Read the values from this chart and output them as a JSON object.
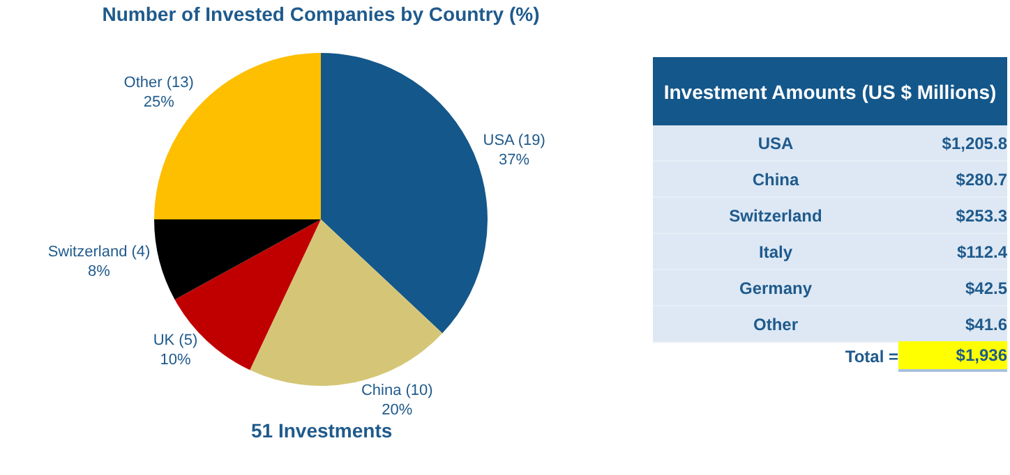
{
  "chart_data": [
    {
      "type": "pie",
      "title": "Number of Invested Companies by Country (%)",
      "categories": [
        "USA (19)",
        "China (10)",
        "UK (5)",
        "Switzerland (4)",
        "Other (13)"
      ],
      "values": [
        37,
        20,
        10,
        8,
        25
      ],
      "value_labels": [
        "37%",
        "20%",
        "10%",
        "8%",
        "25%"
      ],
      "colors": [
        "#14578a",
        "#d5c677",
        "#c00000",
        "#000000",
        "#fdbf00"
      ],
      "annotations": [
        "51 Investments"
      ],
      "legend": false
    },
    {
      "type": "other",
      "title": "Investment Amounts (US $ Millions)",
      "categories": [
        "USA",
        "China",
        "Switzerland",
        "Italy",
        "Germany",
        "Other"
      ],
      "value_labels": [
        "$1,205.8",
        "$280.7",
        "$253.3",
        "$112.4",
        "$42.5",
        "$41.6"
      ],
      "annotations": [
        "Total =",
        "$1,936"
      ]
    }
  ]
}
